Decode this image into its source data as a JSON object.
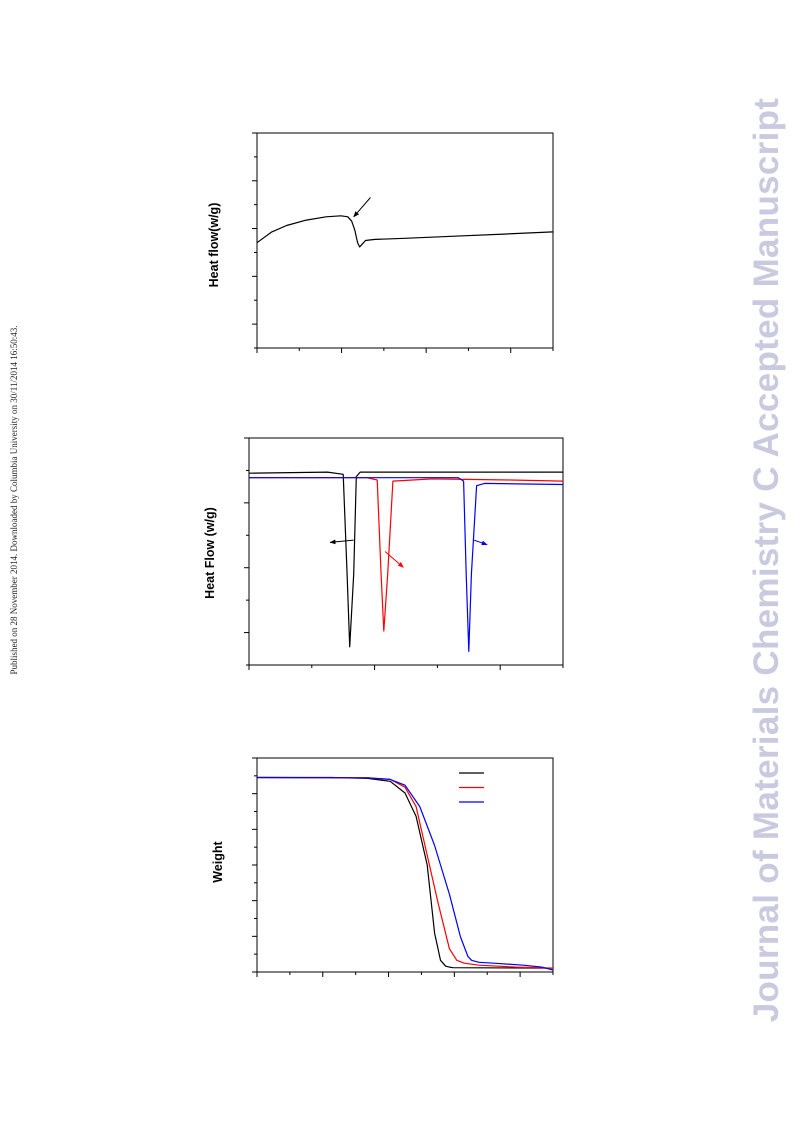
{
  "page": {
    "published_note": "Published on 28 November 2014. Downloaded by Columbia University on 30/11/2014 16:50:43.",
    "watermark": "Journal of Materials Chemistry C Accepted Manuscript"
  },
  "colors": {
    "series_1": "#000000",
    "series_2": "#ff0000",
    "series_3": "#0000ff",
    "watermark": "#c9c9df"
  },
  "chart_data": [
    {
      "type": "line",
      "ylabel": "Heat flow(w/g)",
      "xlim": [
        0,
        300
      ],
      "ylim": [
        0,
        100
      ],
      "grid": false,
      "series": [
        {
          "color": "#000000",
          "x": [
            0,
            15,
            30,
            50,
            70,
            85,
            92,
            96,
            99,
            102,
            104,
            106,
            110,
            115,
            120,
            150,
            200,
            250,
            300
          ],
          "y": [
            49,
            54,
            57,
            59.5,
            61,
            61.5,
            61,
            59,
            55,
            49,
            47,
            48,
            50,
            50.3,
            50.5,
            51,
            52,
            53,
            54
          ]
        }
      ],
      "annotations": [
        {
          "type": "arrow",
          "from": [
            115,
            70
          ],
          "to": [
            98,
            61
          ],
          "color": "#000000"
        }
      ]
    },
    {
      "type": "line",
      "ylabel": "Heat Flow (w/g)",
      "xlim": [
        0,
        240
      ],
      "ylim": [
        0,
        100
      ],
      "grid": false,
      "series": [
        {
          "color": "#000000",
          "x": [
            0,
            60,
            72,
            75,
            77,
            80,
            82,
            85,
            88,
            240
          ],
          "y": [
            84.5,
            85,
            84,
            40,
            8,
            40,
            83,
            85,
            85,
            85
          ]
        },
        {
          "color": "#ff0000",
          "x": [
            0,
            90,
            98,
            101,
            103,
            106,
            110,
            140,
            200,
            240
          ],
          "y": [
            82.5,
            82.5,
            81.5,
            40,
            15,
            40,
            81,
            82,
            81.5,
            81
          ]
        },
        {
          "color": "#0000ff",
          "x": [
            0,
            160,
            164,
            166,
            168,
            170,
            174,
            180,
            240
          ],
          "y": [
            82.5,
            82.5,
            81,
            40,
            6,
            40,
            79,
            80,
            79.5
          ]
        }
      ],
      "annotations": [
        {
          "type": "arrow",
          "from": [
            80,
            55
          ],
          "to": [
            62,
            54
          ],
          "color": "#000000"
        },
        {
          "type": "arrow",
          "from": [
            104,
            50
          ],
          "to": [
            118,
            43
          ],
          "color": "#ff0000"
        },
        {
          "type": "arrow",
          "from": [
            172,
            55
          ],
          "to": [
            182,
            53
          ],
          "color": "#0000ff"
        }
      ]
    },
    {
      "type": "line",
      "ylabel": "Weight",
      "xlim": [
        0,
        400
      ],
      "ylim": [
        0,
        110
      ],
      "grid": false,
      "series": [
        {
          "color": "#000000",
          "x": [
            0,
            100,
            150,
            180,
            200,
            215,
            230,
            240,
            248,
            255,
            260,
            265,
            400
          ],
          "y": [
            100,
            100,
            99.5,
            98,
            92,
            80,
            55,
            20,
            6,
            3,
            2.5,
            2.2,
            2
          ]
        },
        {
          "color": "#ff0000",
          "x": [
            0,
            150,
            180,
            200,
            215,
            230,
            245,
            260,
            270,
            280,
            300,
            350,
            400
          ],
          "y": [
            100,
            99.8,
            99,
            95,
            85,
            60,
            35,
            12,
            6,
            4.5,
            3.5,
            2.5,
            2
          ]
        },
        {
          "color": "#0000ff",
          "x": [
            0,
            150,
            180,
            200,
            220,
            240,
            260,
            275,
            285,
            290,
            300,
            320,
            360,
            385,
            400
          ],
          "y": [
            100,
            99.8,
            99,
            96,
            85,
            65,
            40,
            18,
            8,
            6,
            5,
            4.5,
            3.5,
            2.5,
            1
          ]
        }
      ]
    }
  ]
}
